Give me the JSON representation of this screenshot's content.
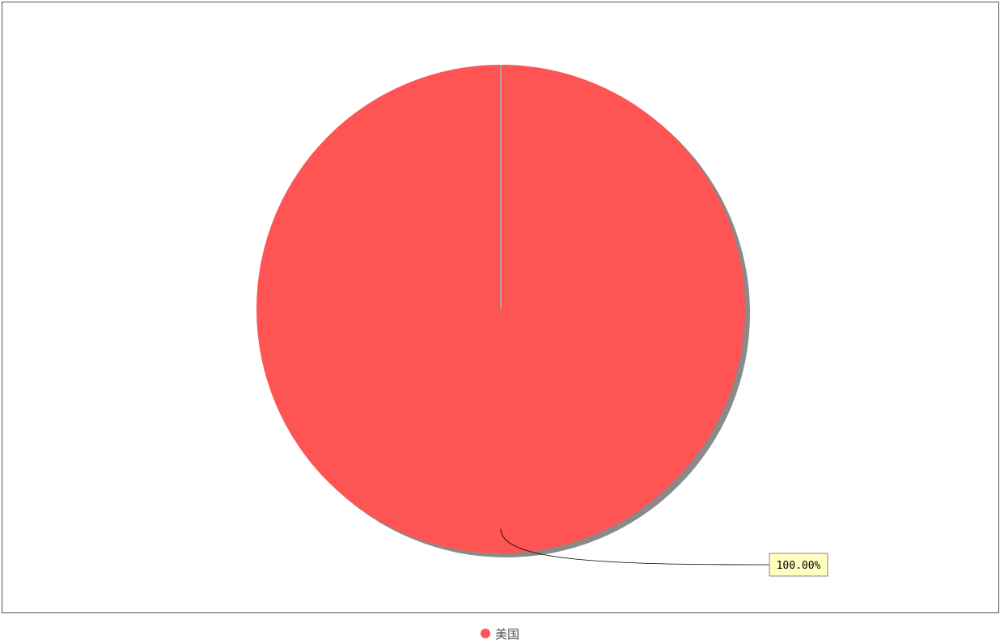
{
  "chart_data": {
    "type": "pie",
    "title": "",
    "slices": [
      {
        "name": "美国",
        "value": 100.0,
        "label": "100.00%",
        "color": "#fe5454"
      }
    ],
    "legend": {
      "placement": "bottom-center"
    },
    "colors": {
      "shadow": "#8a8a8a",
      "slice_seam": "#b0b0b0",
      "data_label_background": "#ffffc0",
      "data_label_border": "#888888",
      "leader_line": "#000000",
      "legend_text": "#555555"
    }
  }
}
